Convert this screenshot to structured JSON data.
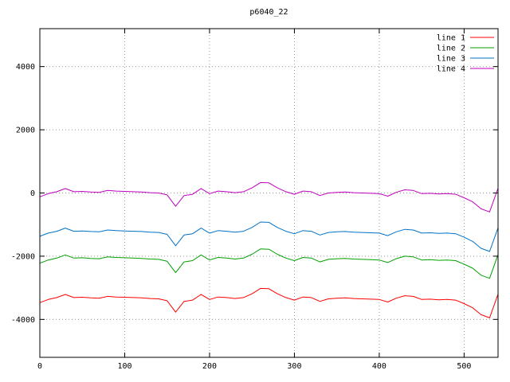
{
  "chart_data": {
    "type": "line",
    "title": "p6040_22",
    "xlabel": "",
    "ylabel": "",
    "xlim": [
      0,
      540
    ],
    "ylim": [
      -5200,
      5200
    ],
    "x_ticks": [
      0,
      100,
      200,
      300,
      400,
      500
    ],
    "y_ticks": [
      -4000,
      -2000,
      0,
      2000,
      4000
    ],
    "grid": true,
    "grid_style": "dotted",
    "grid_color": "#9a9a9a",
    "border_color": "#000000",
    "background": "#ffffff",
    "legend_position": "top-right-inside",
    "x": [
      0,
      10,
      20,
      30,
      40,
      50,
      60,
      70,
      80,
      90,
      100,
      110,
      120,
      130,
      140,
      150,
      160,
      170,
      180,
      190,
      200,
      210,
      220,
      230,
      240,
      250,
      260,
      270,
      280,
      290,
      300,
      310,
      320,
      330,
      340,
      350,
      360,
      370,
      380,
      390,
      400,
      410,
      420,
      430,
      440,
      450,
      460,
      470,
      480,
      490,
      500,
      510,
      520,
      530,
      540
    ],
    "series": [
      {
        "name": "line 1",
        "color": "#ff0000",
        "values": [
          -3470,
          -3370,
          -3310,
          -3210,
          -3310,
          -3300,
          -3320,
          -3330,
          -3270,
          -3290,
          -3300,
          -3310,
          -3320,
          -3340,
          -3350,
          -3410,
          -3770,
          -3430,
          -3390,
          -3210,
          -3370,
          -3290,
          -3310,
          -3340,
          -3310,
          -3190,
          -3020,
          -3030,
          -3190,
          -3310,
          -3390,
          -3290,
          -3310,
          -3430,
          -3350,
          -3330,
          -3320,
          -3340,
          -3350,
          -3360,
          -3370,
          -3450,
          -3330,
          -3250,
          -3270,
          -3370,
          -3360,
          -3380,
          -3370,
          -3390,
          -3500,
          -3630,
          -3850,
          -3950,
          -3200
        ]
      },
      {
        "name": "line 2",
        "color": "#00a000",
        "values": [
          -2220,
          -2120,
          -2060,
          -1960,
          -2060,
          -2050,
          -2070,
          -2080,
          -2020,
          -2040,
          -2050,
          -2060,
          -2070,
          -2090,
          -2100,
          -2160,
          -2520,
          -2180,
          -2140,
          -1960,
          -2120,
          -2040,
          -2060,
          -2090,
          -2060,
          -1940,
          -1770,
          -1780,
          -1940,
          -2060,
          -2140,
          -2040,
          -2060,
          -2180,
          -2100,
          -2080,
          -2070,
          -2090,
          -2100,
          -2110,
          -2120,
          -2200,
          -2080,
          -2000,
          -2020,
          -2120,
          -2110,
          -2130,
          -2120,
          -2140,
          -2250,
          -2380,
          -2600,
          -2700,
          -1950
        ]
      },
      {
        "name": "line 3",
        "color": "#0072c6",
        "values": [
          -1370,
          -1270,
          -1210,
          -1110,
          -1210,
          -1200,
          -1220,
          -1230,
          -1170,
          -1190,
          -1200,
          -1210,
          -1220,
          -1240,
          -1250,
          -1310,
          -1670,
          -1330,
          -1290,
          -1110,
          -1270,
          -1190,
          -1210,
          -1240,
          -1210,
          -1090,
          -920,
          -930,
          -1090,
          -1210,
          -1290,
          -1190,
          -1210,
          -1330,
          -1250,
          -1230,
          -1220,
          -1240,
          -1250,
          -1260,
          -1270,
          -1350,
          -1230,
          -1150,
          -1170,
          -1270,
          -1260,
          -1280,
          -1270,
          -1290,
          -1400,
          -1530,
          -1750,
          -1850,
          -1100
        ]
      },
      {
        "name": "line 4",
        "color": "#c000c0",
        "values": [
          -120,
          -20,
          40,
          140,
          40,
          50,
          30,
          20,
          80,
          60,
          50,
          40,
          30,
          10,
          0,
          -60,
          -420,
          -80,
          -40,
          140,
          -20,
          60,
          40,
          10,
          40,
          160,
          330,
          320,
          160,
          40,
          -40,
          60,
          40,
          -80,
          0,
          20,
          30,
          10,
          0,
          -10,
          -20,
          -100,
          20,
          100,
          80,
          -20,
          -10,
          -30,
          -20,
          -40,
          -150,
          -280,
          -500,
          -600,
          150
        ]
      }
    ]
  }
}
